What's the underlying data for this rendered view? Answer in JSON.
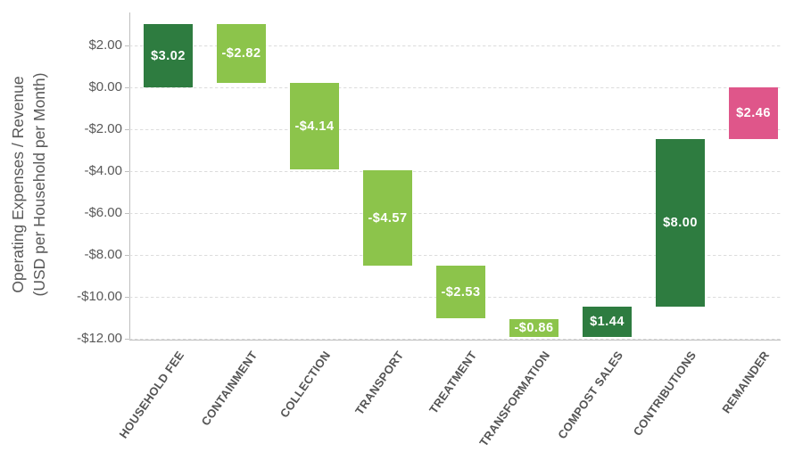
{
  "chart_data": {
    "type": "bar",
    "subtype": "waterfall",
    "title": "",
    "ylabel_line1": "Operating Expenses / Revenue",
    "ylabel_line2": "(USD per Household per Month)",
    "xlabel": "",
    "categories": [
      "HOUSEHOLD FEE",
      "CONTAINMENT",
      "COLLECTION",
      "TRANSPORT",
      "TREATMENT",
      "TRANSFORMATION",
      "COMPOST SALES",
      "CONTRIBUTIONS",
      "REMAINDER"
    ],
    "values": [
      3.02,
      -2.82,
      -4.14,
      -4.57,
      -2.53,
      -0.86,
      1.44,
      8.0,
      2.46
    ],
    "bar_labels": [
      "$3.02",
      "-$2.82",
      "-$4.14",
      "-$4.57",
      "-$2.53",
      "-$0.86",
      "$1.44",
      "$8.00",
      "$2.46"
    ],
    "bar_color_keys": [
      "dark_green",
      "light_green",
      "light_green",
      "light_green",
      "light_green",
      "light_green",
      "dark_green",
      "dark_green",
      "pink"
    ],
    "bar_segments": [
      {
        "from": 0.0,
        "to": 3.02
      },
      {
        "from": 0.2,
        "to": 3.02
      },
      {
        "from": -3.94,
        "to": 0.2
      },
      {
        "from": -8.51,
        "to": -3.94
      },
      {
        "from": -11.04,
        "to": -8.51
      },
      {
        "from": -11.9,
        "to": -11.04
      },
      {
        "from": -11.9,
        "to": -10.46
      },
      {
        "from": -10.46,
        "to": -2.46
      },
      {
        "from": -2.46,
        "to": 0.0
      }
    ],
    "y_ticks": [
      {
        "value": 2,
        "label": "$2.00"
      },
      {
        "value": 0,
        "label": "$0.00"
      },
      {
        "value": -2,
        "label": "-$2.00"
      },
      {
        "value": -4,
        "label": "-$4.00"
      },
      {
        "value": -6,
        "label": "-$6.00"
      },
      {
        "value": -8,
        "label": "-$8.00"
      },
      {
        "value": -10,
        "label": "-$10.00"
      },
      {
        "value": -12,
        "label": "-$12.00"
      }
    ],
    "ylim": [
      -12.08,
      3.57
    ],
    "grid": true,
    "legend": false,
    "colors": {
      "dark_green": "#2E7C40",
      "light_green": "#8CC44B",
      "pink": "#DF568A",
      "gridline": "#DCDCDC",
      "axis_line": "#BFBFBF",
      "tick_text": "#595959",
      "category_text": "#545454",
      "bar_label_text": "#FFFFFF"
    }
  }
}
